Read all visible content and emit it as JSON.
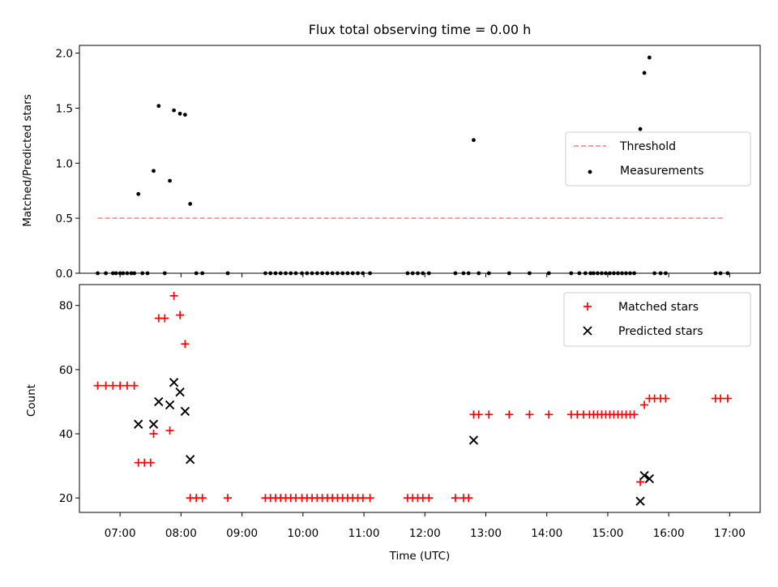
{
  "figure": {
    "title": "Flux total observing time = 0.00 h"
  },
  "chart_data": [
    {
      "type": "scatter",
      "ylabel": "Matched/Predicted stars",
      "xlim": [
        "06:20",
        "17:30"
      ],
      "ylim": [
        0,
        2.07
      ],
      "yticks": [
        0.0,
        0.5,
        1.0,
        1.5,
        2.0
      ],
      "ytick_labels": [
        "0.0",
        "0.5",
        "1.0",
        "1.5",
        "2.0"
      ],
      "legend": {
        "position": "center-right",
        "entries": [
          "Threshold",
          "Measurements"
        ]
      },
      "threshold": {
        "name": "Threshold",
        "value": 0.5,
        "x_start": "06:38",
        "x_end": "16:55",
        "color": "#ff7f7f",
        "style": "dashed"
      },
      "series": [
        {
          "name": "Measurements",
          "marker": "dot",
          "color": "#000000",
          "points": [
            [
              "06:38",
              0
            ],
            [
              "06:46",
              0
            ],
            [
              "06:53",
              0
            ],
            [
              "06:56",
              0
            ],
            [
              "07:00",
              0
            ],
            [
              "07:03",
              0
            ],
            [
              "07:07",
              0
            ],
            [
              "07:11",
              0
            ],
            [
              "07:14",
              0
            ],
            [
              "07:18",
              0.72
            ],
            [
              "07:22",
              0
            ],
            [
              "07:27",
              0
            ],
            [
              "07:33",
              0.93
            ],
            [
              "07:38",
              1.52
            ],
            [
              "07:44",
              0
            ],
            [
              "07:49",
              0.84
            ],
            [
              "07:53",
              1.48
            ],
            [
              "07:59",
              1.45
            ],
            [
              "08:04",
              1.44
            ],
            [
              "08:09",
              0.63
            ],
            [
              "08:15",
              0
            ],
            [
              "08:21",
              0
            ],
            [
              "08:46",
              0
            ],
            [
              "09:23",
              0
            ],
            [
              "09:28",
              0
            ],
            [
              "09:33",
              0
            ],
            [
              "09:38",
              0
            ],
            [
              "09:43",
              0
            ],
            [
              "09:48",
              0
            ],
            [
              "09:53",
              0
            ],
            [
              "09:59",
              0
            ],
            [
              "10:04",
              0
            ],
            [
              "10:09",
              0
            ],
            [
              "10:14",
              0
            ],
            [
              "10:19",
              0
            ],
            [
              "10:24",
              0
            ],
            [
              "10:29",
              0
            ],
            [
              "10:34",
              0
            ],
            [
              "10:39",
              0
            ],
            [
              "10:44",
              0
            ],
            [
              "10:49",
              0
            ],
            [
              "10:54",
              0
            ],
            [
              "10:59",
              0
            ],
            [
              "11:06",
              0
            ],
            [
              "11:43",
              0
            ],
            [
              "11:48",
              0
            ],
            [
              "11:53",
              0
            ],
            [
              "11:58",
              0
            ],
            [
              "12:04",
              0
            ],
            [
              "12:30",
              0
            ],
            [
              "12:38",
              0
            ],
            [
              "12:43",
              0
            ],
            [
              "12:48",
              1.21
            ],
            [
              "12:53",
              0
            ],
            [
              "13:03",
              0
            ],
            [
              "13:23",
              0
            ],
            [
              "13:43",
              0
            ],
            [
              "14:02",
              0
            ],
            [
              "14:24",
              0
            ],
            [
              "14:32",
              0
            ],
            [
              "14:38",
              0
            ],
            [
              "14:43",
              0
            ],
            [
              "14:46",
              0
            ],
            [
              "14:50",
              0
            ],
            [
              "14:54",
              0
            ],
            [
              "14:58",
              0
            ],
            [
              "15:02",
              0
            ],
            [
              "15:06",
              0
            ],
            [
              "15:10",
              0
            ],
            [
              "15:14",
              0
            ],
            [
              "15:18",
              0
            ],
            [
              "15:22",
              0
            ],
            [
              "15:26",
              0
            ],
            [
              "15:32",
              1.31
            ],
            [
              "15:36",
              1.82
            ],
            [
              "15:41",
              1.96
            ],
            [
              "15:46",
              0
            ],
            [
              "15:52",
              0
            ],
            [
              "15:57",
              0
            ],
            [
              "16:46",
              0
            ],
            [
              "16:51",
              0
            ],
            [
              "16:58",
              0
            ]
          ]
        }
      ]
    },
    {
      "type": "scatter",
      "ylabel": "Count",
      "xlabel": "Time (UTC)",
      "xlim": [
        "06:20",
        "17:30"
      ],
      "ylim": [
        15.5,
        86.5
      ],
      "yticks": [
        20,
        40,
        60,
        80
      ],
      "ytick_labels": [
        "20",
        "40",
        "60",
        "80"
      ],
      "xticks": [
        "07:00",
        "08:00",
        "09:00",
        "10:00",
        "11:00",
        "12:00",
        "13:00",
        "14:00",
        "15:00",
        "16:00",
        "17:00"
      ],
      "legend": {
        "position": "top-right",
        "entries": [
          "Matched stars",
          "Predicted stars"
        ]
      },
      "series": [
        {
          "name": "Matched stars",
          "marker": "plus",
          "color": "#ff0000",
          "points": [
            [
              "06:38",
              55
            ],
            [
              "06:46",
              55
            ],
            [
              "06:53",
              55
            ],
            [
              "07:00",
              55
            ],
            [
              "07:07",
              55
            ],
            [
              "07:14",
              55
            ],
            [
              "07:18",
              31
            ],
            [
              "07:24",
              31
            ],
            [
              "07:30",
              31
            ],
            [
              "07:33",
              40
            ],
            [
              "07:38",
              76
            ],
            [
              "07:44",
              76
            ],
            [
              "07:49",
              41
            ],
            [
              "07:53",
              83
            ],
            [
              "07:59",
              77
            ],
            [
              "08:04",
              68
            ],
            [
              "08:09",
              20
            ],
            [
              "08:15",
              20
            ],
            [
              "08:21",
              20
            ],
            [
              "08:46",
              20
            ],
            [
              "09:23",
              20
            ],
            [
              "09:28",
              20
            ],
            [
              "09:33",
              20
            ],
            [
              "09:38",
              20
            ],
            [
              "09:43",
              20
            ],
            [
              "09:48",
              20
            ],
            [
              "09:53",
              20
            ],
            [
              "09:59",
              20
            ],
            [
              "10:04",
              20
            ],
            [
              "10:09",
              20
            ],
            [
              "10:14",
              20
            ],
            [
              "10:19",
              20
            ],
            [
              "10:24",
              20
            ],
            [
              "10:29",
              20
            ],
            [
              "10:34",
              20
            ],
            [
              "10:39",
              20
            ],
            [
              "10:44",
              20
            ],
            [
              "10:49",
              20
            ],
            [
              "10:54",
              20
            ],
            [
              "10:59",
              20
            ],
            [
              "11:06",
              20
            ],
            [
              "11:43",
              20
            ],
            [
              "11:48",
              20
            ],
            [
              "11:53",
              20
            ],
            [
              "11:58",
              20
            ],
            [
              "12:04",
              20
            ],
            [
              "12:30",
              20
            ],
            [
              "12:38",
              20
            ],
            [
              "12:43",
              20
            ],
            [
              "12:48",
              46
            ],
            [
              "12:53",
              46
            ],
            [
              "13:03",
              46
            ],
            [
              "13:23",
              46
            ],
            [
              "13:43",
              46
            ],
            [
              "14:02",
              46
            ],
            [
              "14:24",
              46
            ],
            [
              "14:30",
              46
            ],
            [
              "14:36",
              46
            ],
            [
              "14:42",
              46
            ],
            [
              "14:46",
              46
            ],
            [
              "14:50",
              46
            ],
            [
              "14:54",
              46
            ],
            [
              "14:58",
              46
            ],
            [
              "15:02",
              46
            ],
            [
              "15:06",
              46
            ],
            [
              "15:10",
              46
            ],
            [
              "15:14",
              46
            ],
            [
              "15:18",
              46
            ],
            [
              "15:22",
              46
            ],
            [
              "15:26",
              46
            ],
            [
              "15:32",
              25
            ],
            [
              "15:36",
              49
            ],
            [
              "15:41",
              51
            ],
            [
              "15:46",
              51
            ],
            [
              "15:52",
              51
            ],
            [
              "15:57",
              51
            ],
            [
              "16:46",
              51
            ],
            [
              "16:51",
              51
            ],
            [
              "16:58",
              51
            ]
          ]
        },
        {
          "name": "Predicted stars",
          "marker": "x",
          "color": "#000000",
          "points": [
            [
              "07:18",
              43
            ],
            [
              "07:33",
              43
            ],
            [
              "07:38",
              50
            ],
            [
              "07:49",
              49
            ],
            [
              "07:53",
              56
            ],
            [
              "07:59",
              53
            ],
            [
              "08:04",
              47
            ],
            [
              "08:09",
              32
            ],
            [
              "12:48",
              38
            ],
            [
              "15:32",
              19
            ],
            [
              "15:36",
              27
            ],
            [
              "15:41",
              26
            ]
          ]
        }
      ]
    }
  ]
}
